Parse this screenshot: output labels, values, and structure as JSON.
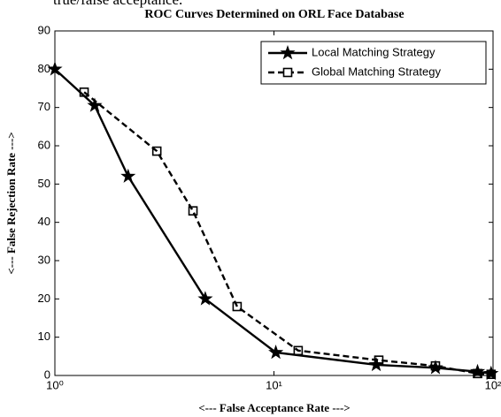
{
  "caption": "true/false acceptance.",
  "chart_data": {
    "type": "line",
    "title": "ROC Curves Determined on ORL Face Database",
    "x_label": "<--- False Acceptance Rate --->",
    "y_label": "<--- False Rejection Rate --->",
    "xlog": true,
    "xlim": [
      1,
      100
    ],
    "xticks": [
      {
        "value": 1,
        "label": "10⁰"
      },
      {
        "value": 10,
        "label": "10¹"
      },
      {
        "value": 100,
        "label": "10²"
      }
    ],
    "ylim": [
      0,
      90
    ],
    "yticks": [
      0,
      10,
      20,
      30,
      40,
      50,
      60,
      70,
      80,
      90
    ],
    "legend": "upper right",
    "series": [
      {
        "name": "Local Matching Strategy",
        "color": "#000000",
        "dash": false,
        "marker": "star",
        "x": [
          1,
          1.52,
          2.16,
          4.86,
          10.2,
          29.3,
          54.6,
          85,
          98
        ],
        "values": [
          80,
          70.5,
          52,
          20,
          6,
          2.8,
          2,
          1,
          0.5
        ]
      },
      {
        "name": "Global Matching Strategy",
        "color": "#000000",
        "dash": true,
        "marker": "square",
        "x": [
          1.36,
          2.92,
          4.27,
          6.79,
          12.9,
          30.1,
          54.6,
          85,
          98
        ],
        "values": [
          74,
          58.6,
          43,
          18,
          6.5,
          4,
          2.5,
          0.5,
          0.3
        ]
      }
    ]
  }
}
